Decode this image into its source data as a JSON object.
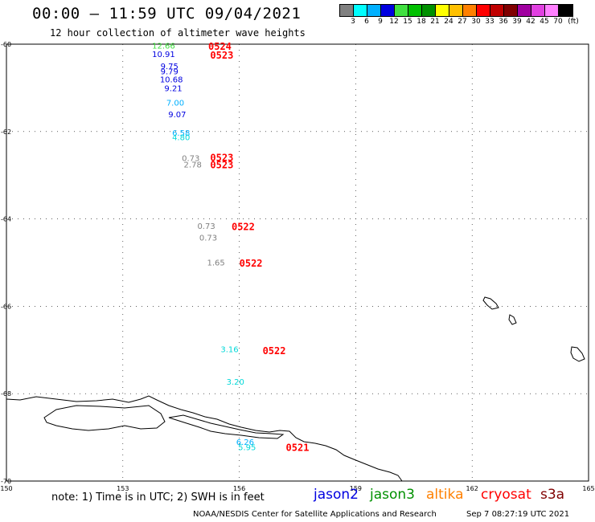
{
  "header": {
    "title": "00:00 – 11:59 UTC 09/04/2021",
    "subtitle": "12 hour collection of altimeter wave heights"
  },
  "colorbar": {
    "colors": [
      "#808080",
      "#00ffff",
      "#00b0ff",
      "#0000e0",
      "#40e040",
      "#00c000",
      "#009000",
      "#ffff00",
      "#ffc000",
      "#ff8000",
      "#ff0000",
      "#c00000",
      "#800000",
      "#a000a0",
      "#e040e0",
      "#ff80ff",
      "#000000"
    ],
    "labels": [
      "3",
      "6",
      "9",
      "12",
      "15",
      "18",
      "21",
      "24",
      "27",
      "30",
      "33",
      "36",
      "39",
      "42",
      "45",
      "70",
      "(ft)"
    ]
  },
  "axes": {
    "lat_labels": [
      "-60",
      "-62",
      "-64",
      "-66",
      "-68",
      "-70"
    ],
    "lon_labels": [
      "150",
      "153",
      "156",
      "159",
      "162",
      "165"
    ]
  },
  "measurements": [
    {
      "value": "12.66",
      "color": "#40e040",
      "lon": 154.05,
      "lat": -60.03
    },
    {
      "value": "10.91",
      "color": "#0000e0",
      "lon": 154.05,
      "lat": -60.22
    },
    {
      "value": "9.75",
      "color": "#0000e0",
      "lon": 154.2,
      "lat": -60.5
    },
    {
      "value": "9.79",
      "color": "#0000e0",
      "lon": 154.2,
      "lat": -60.62
    },
    {
      "value": "10.68",
      "color": "#0000e0",
      "lon": 154.25,
      "lat": -60.8
    },
    {
      "value": "9.21",
      "color": "#0000e0",
      "lon": 154.3,
      "lat": -61.0
    },
    {
      "value": "7.00",
      "color": "#00b0ff",
      "lon": 154.35,
      "lat": -61.33
    },
    {
      "value": "9.07",
      "color": "#0000e0",
      "lon": 154.4,
      "lat": -61.6
    },
    {
      "value": "6.58",
      "color": "#00b0ff",
      "lon": 154.5,
      "lat": -62.02
    },
    {
      "value": "4.80",
      "color": "#00d8d8",
      "lon": 154.5,
      "lat": -62.12
    },
    {
      "value": "0.73",
      "color": "#808080",
      "lon": 154.75,
      "lat": -62.6
    },
    {
      "value": "2.78",
      "color": "#808080",
      "lon": 154.8,
      "lat": -62.75
    },
    {
      "value": "0.73",
      "color": "#808080",
      "lon": 155.15,
      "lat": -64.15
    },
    {
      "value": "0.73",
      "color": "#808080",
      "lon": 155.2,
      "lat": -64.42
    },
    {
      "value": "1.65",
      "color": "#808080",
      "lon": 155.4,
      "lat": -64.99
    },
    {
      "value": "3.16",
      "color": "#00d8d8",
      "lon": 155.75,
      "lat": -66.98
    },
    {
      "value": "3.20",
      "color": "#00d8d8",
      "lon": 155.9,
      "lat": -67.72
    },
    {
      "value": "6.26",
      "color": "#00b0ff",
      "lon": 156.15,
      "lat": -69.1
    },
    {
      "value": "5.95",
      "color": "#00d8d8",
      "lon": 156.2,
      "lat": -69.22
    }
  ],
  "track_labels": [
    {
      "text": "0524",
      "color": "#ff0000",
      "lon": 155.5,
      "lat": -60.04
    },
    {
      "text": "0523",
      "color": "#ff0000",
      "lon": 155.55,
      "lat": -60.24
    },
    {
      "text": "0523",
      "color": "#ff0000",
      "lon": 155.55,
      "lat": -62.58
    },
    {
      "text": "0523",
      "color": "#ff0000",
      "lon": 155.55,
      "lat": -62.75
    },
    {
      "text": "0522",
      "color": "#ff0000",
      "lon": 156.1,
      "lat": -64.16
    },
    {
      "text": "0522",
      "color": "#ff0000",
      "lon": 156.3,
      "lat": -65.0
    },
    {
      "text": "0522",
      "color": "#ff0000",
      "lon": 156.9,
      "lat": -67.0
    },
    {
      "text": "0521",
      "color": "#ff0000",
      "lon": 157.5,
      "lat": -69.22
    }
  ],
  "footer": {
    "note": "note: 1) Time is in UTC; 2) SWH is in feet",
    "legend": [
      {
        "name": "jason2",
        "color": "#0000e0"
      },
      {
        "name": "jason3",
        "color": "#009000"
      },
      {
        "name": "altika",
        "color": "#ff8000"
      },
      {
        "name": "cryosat",
        "color": "#ff0000"
      },
      {
        "name": "s3a",
        "color": "#800000"
      }
    ],
    "credit": "NOAA/NESDIS Center for Satellite Applications and Research",
    "timestamp": "Sep  7 08:27:19 UTC 2021"
  }
}
